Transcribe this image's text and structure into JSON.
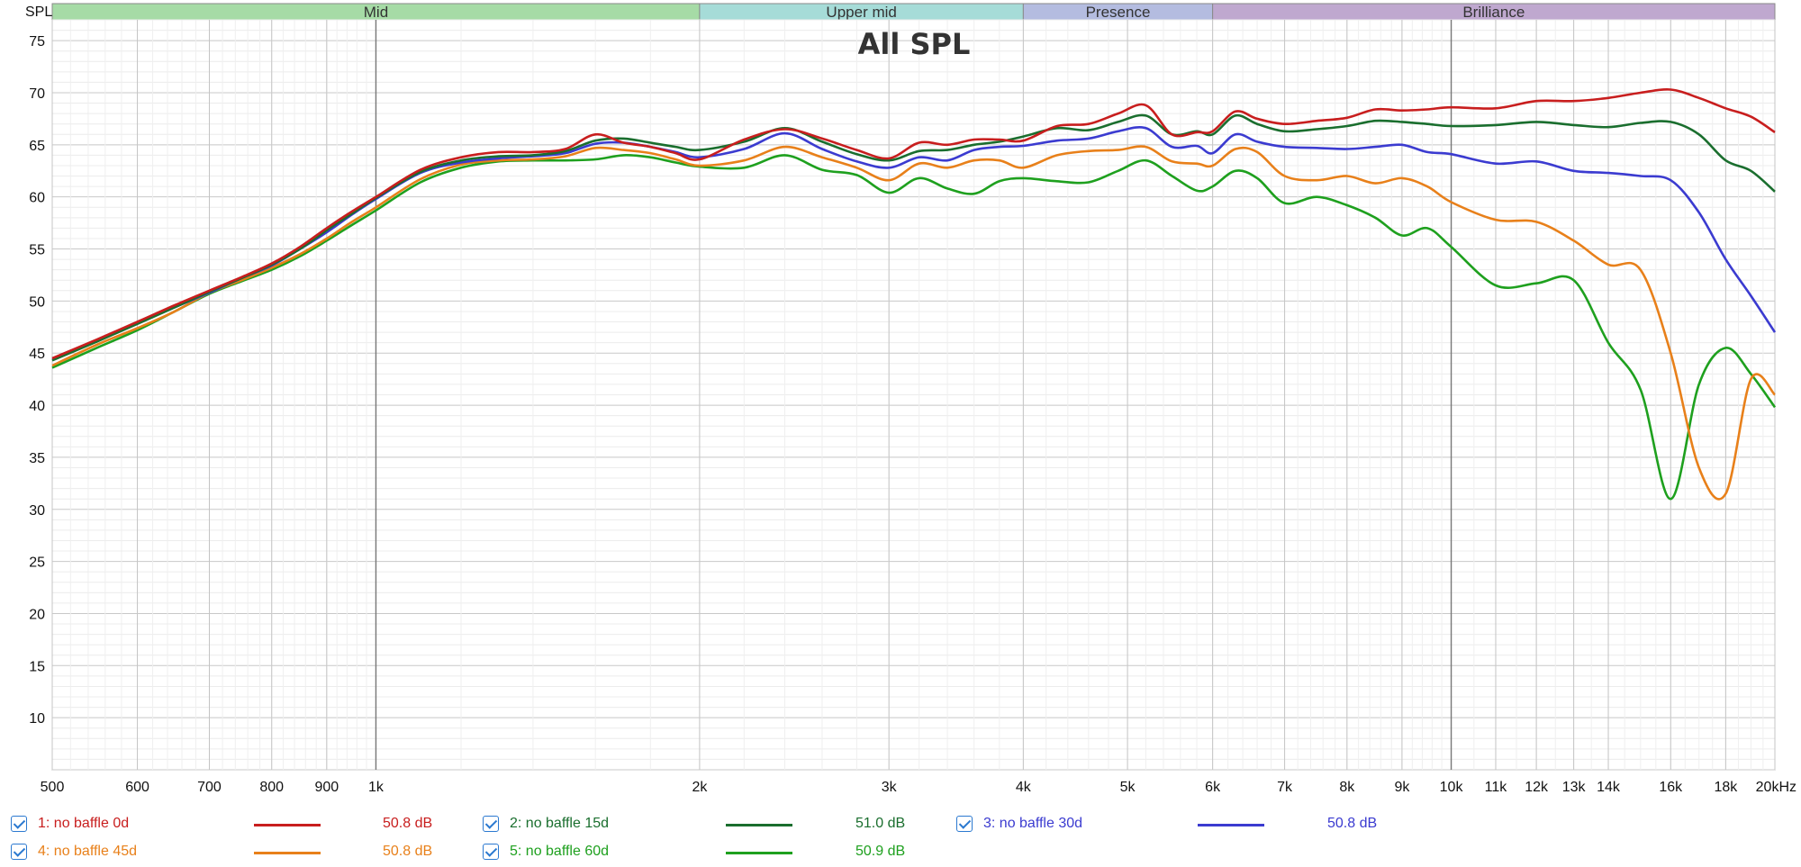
{
  "chart_data": {
    "type": "line",
    "title": "All SPL",
    "ylabel": "SPL",
    "x_scale": "log",
    "xlim": [
      500,
      20000
    ],
    "ylim": [
      5,
      77
    ],
    "x_ticks": [
      {
        "v": 500,
        "label": "500"
      },
      {
        "v": 600,
        "label": "600"
      },
      {
        "v": 700,
        "label": "700"
      },
      {
        "v": 800,
        "label": "800"
      },
      {
        "v": 900,
        "label": "900"
      },
      {
        "v": 1000,
        "label": "1k"
      },
      {
        "v": 2000,
        "label": "2k"
      },
      {
        "v": 3000,
        "label": "3k"
      },
      {
        "v": 4000,
        "label": "4k"
      },
      {
        "v": 5000,
        "label": "5k"
      },
      {
        "v": 6000,
        "label": "6k"
      },
      {
        "v": 7000,
        "label": "7k"
      },
      {
        "v": 8000,
        "label": "8k"
      },
      {
        "v": 9000,
        "label": "9k"
      },
      {
        "v": 10000,
        "label": "10k"
      },
      {
        "v": 11000,
        "label": "11k"
      },
      {
        "v": 12000,
        "label": "12k"
      },
      {
        "v": 13000,
        "label": "13k"
      },
      {
        "v": 14000,
        "label": "14k"
      },
      {
        "v": 16000,
        "label": "16k"
      },
      {
        "v": 18000,
        "label": "18k"
      },
      {
        "v": 20000,
        "label": "20kHz"
      }
    ],
    "y_ticks": [
      10,
      15,
      20,
      25,
      30,
      35,
      40,
      45,
      50,
      55,
      60,
      65,
      70,
      75
    ],
    "grid": true,
    "bands": [
      {
        "label": "Mid",
        "from": 500,
        "to": 2000,
        "color": "#a6dba6"
      },
      {
        "label": "Upper mid",
        "from": 2000,
        "to": 4000,
        "color": "#a6dcd8"
      },
      {
        "label": "Presence",
        "from": 4000,
        "to": 6000,
        "color": "#b4bce0"
      },
      {
        "label": "Brilliance",
        "from": 6000,
        "to": 20000,
        "color": "#bfa8cf"
      }
    ],
    "x": [
      500,
      550,
      600,
      650,
      700,
      750,
      800,
      850,
      900,
      950,
      1000,
      1100,
      1200,
      1300,
      1400,
      1500,
      1600,
      1700,
      1800,
      1900,
      2000,
      2200,
      2400,
      2600,
      2800,
      3000,
      3200,
      3400,
      3600,
      3800,
      4000,
      4300,
      4600,
      4900,
      5200,
      5500,
      5800,
      6000,
      6300,
      6600,
      7000,
      7500,
      8000,
      8500,
      9000,
      9500,
      10000,
      11000,
      12000,
      13000,
      14000,
      15000,
      16000,
      17000,
      18000,
      19000,
      20000
    ],
    "series": [
      {
        "name": "1: no baffle 0d",
        "level": "50.8 dB",
        "color": "#c81e1e",
        "values": [
          44.5,
          46.3,
          48.0,
          49.6,
          51.0,
          52.3,
          53.6,
          55.2,
          57.0,
          58.6,
          60.0,
          62.6,
          63.8,
          64.3,
          64.3,
          64.6,
          66.0,
          65.2,
          64.8,
          64.2,
          63.6,
          65.5,
          66.5,
          65.6,
          64.5,
          63.7,
          65.2,
          65.0,
          65.5,
          65.5,
          65.4,
          66.8,
          67.0,
          68.0,
          68.8,
          66.0,
          66.2,
          66.3,
          68.2,
          67.5,
          67.0,
          67.3,
          67.6,
          68.4,
          68.3,
          68.4,
          68.6,
          68.5,
          69.2,
          69.2,
          69.5,
          70.0,
          70.3,
          69.5,
          68.5,
          67.7,
          66.2
        ]
      },
      {
        "name": "2: no baffle 15d",
        "level": "51.0 dB",
        "color": "#1a6e2e",
        "values": [
          44.3,
          46.1,
          47.8,
          49.4,
          50.9,
          52.2,
          53.5,
          55.0,
          56.8,
          58.4,
          59.9,
          62.4,
          63.5,
          63.9,
          64.0,
          64.4,
          65.4,
          65.6,
          65.2,
          64.8,
          64.5,
          65.3,
          66.6,
          65.3,
          64.1,
          63.5,
          64.4,
          64.5,
          65.0,
          65.3,
          65.8,
          66.6,
          66.4,
          67.2,
          67.8,
          66.0,
          66.3,
          66.0,
          67.8,
          67.0,
          66.3,
          66.5,
          66.8,
          67.3,
          67.2,
          67.0,
          66.8,
          66.9,
          67.2,
          66.9,
          66.7,
          67.1,
          67.2,
          66.0,
          63.5,
          62.5,
          60.5
        ]
      },
      {
        "name": "3: no baffle 30d",
        "level": "50.8 dB",
        "color": "#3b3bd0",
        "values": [
          44.4,
          46.2,
          47.9,
          49.4,
          50.8,
          52.2,
          53.4,
          55.0,
          56.6,
          58.3,
          59.8,
          62.3,
          63.3,
          63.7,
          63.9,
          64.2,
          65.1,
          65.2,
          64.8,
          64.3,
          63.8,
          64.6,
          66.1,
          64.6,
          63.4,
          62.8,
          63.8,
          63.5,
          64.5,
          64.8,
          64.9,
          65.4,
          65.6,
          66.3,
          66.6,
          64.8,
          64.9,
          64.2,
          66.0,
          65.3,
          64.8,
          64.7,
          64.6,
          64.8,
          65.0,
          64.3,
          64.1,
          63.2,
          63.4,
          62.5,
          62.3,
          62.0,
          61.6,
          58.5,
          54.0,
          50.5,
          47.0
        ]
      },
      {
        "name": "4: no baffle 45d",
        "level": "50.8 dB",
        "color": "#e8801a",
        "values": [
          43.8,
          45.8,
          47.4,
          49.0,
          50.8,
          52.0,
          53.2,
          54.5,
          56.0,
          57.6,
          59.0,
          61.7,
          63.1,
          63.5,
          63.6,
          63.9,
          64.7,
          64.5,
          64.2,
          63.6,
          63.0,
          63.5,
          64.8,
          63.8,
          62.8,
          61.6,
          63.2,
          62.8,
          63.5,
          63.5,
          62.8,
          64.0,
          64.4,
          64.5,
          64.8,
          63.4,
          63.2,
          63.0,
          64.6,
          64.3,
          62.0,
          61.6,
          62.0,
          61.3,
          61.8,
          61.0,
          59.5,
          57.8,
          57.6,
          55.8,
          53.5,
          53.0,
          45.0,
          34.0,
          31.5,
          42.5,
          41.0
        ]
      },
      {
        "name": "5: no baffle 60d",
        "level": "50.9 dB",
        "color": "#1ea01e",
        "values": [
          43.6,
          45.5,
          47.2,
          49.0,
          50.7,
          51.9,
          53.0,
          54.3,
          55.8,
          57.3,
          58.7,
          61.4,
          62.8,
          63.4,
          63.5,
          63.5,
          63.6,
          64.0,
          63.8,
          63.3,
          62.9,
          62.8,
          64.0,
          62.6,
          62.1,
          60.4,
          61.8,
          60.8,
          60.3,
          61.5,
          61.8,
          61.5,
          61.4,
          62.5,
          63.5,
          62.0,
          60.6,
          61.0,
          62.5,
          61.8,
          59.4,
          60.0,
          59.2,
          58.0,
          56.3,
          57.0,
          55.2,
          51.5,
          51.7,
          52.0,
          46.0,
          41.5,
          31.0,
          42.0,
          45.5,
          43.0,
          39.8
        ]
      }
    ]
  }
}
